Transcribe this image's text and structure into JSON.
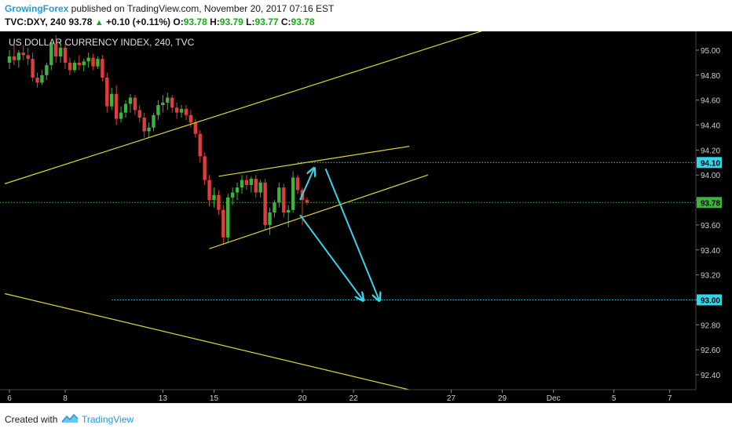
{
  "header": {
    "author": "GrowingForex",
    "published_text": " published on TradingView.com, November 20, 2017 07:16 EST",
    "symbol": "TVC:DXY, 240",
    "last": "93.78",
    "change": "+0.10 (+0.11%)",
    "o_label": "O:",
    "o_value": "93.78",
    "h_label": "H:",
    "h_value": "93.79",
    "l_label": "L:",
    "l_value": "93.77",
    "c_label": "C:",
    "c_value": "93.78",
    "up_arrow": "▲"
  },
  "footer": {
    "created_with": "Created with",
    "brand": "TradingView"
  },
  "colors": {
    "background": "#000000",
    "bull": "#3cb43c",
    "bear": "#e03c3c",
    "trendline": "#d9d92e",
    "arrow": "#33d6e8",
    "level_label": "#33d6e8",
    "price_label": "#3cb43c",
    "axis_text": "#cfcfcf"
  },
  "chart_data": {
    "type": "candlestick",
    "title": "US DOLLAR CURRENCY INDEX, 240, TVC",
    "ylim": [
      92.3,
      95.2
    ],
    "y_ticks": [
      "95.00",
      "94.80",
      "94.60",
      "94.40",
      "94.20",
      "94.00",
      "93.80",
      "93.60",
      "93.40",
      "93.20",
      "93.00",
      "92.80",
      "92.60",
      "92.40"
    ],
    "x_ticks": [
      {
        "label": "6",
        "bar": 0
      },
      {
        "label": "8",
        "bar": 12
      },
      {
        "label": "13",
        "bar": 33
      },
      {
        "label": "15",
        "bar": 44
      },
      {
        "label": "20",
        "bar": 63
      },
      {
        "label": "22",
        "bar": 74
      },
      {
        "label": "27",
        "bar": 95
      },
      {
        "label": "29",
        "bar": 106
      },
      {
        "label": "Dec",
        "bar": 117
      },
      {
        "label": "5",
        "bar": 130
      },
      {
        "label": "7",
        "bar": 142
      }
    ],
    "candles": [
      {
        "o": 94.9,
        "h": 95.0,
        "l": 94.85,
        "c": 94.95
      },
      {
        "o": 94.95,
        "h": 95.05,
        "l": 94.88,
        "c": 94.92
      },
      {
        "o": 94.92,
        "h": 95.0,
        "l": 94.86,
        "c": 94.98
      },
      {
        "o": 94.98,
        "h": 95.04,
        "l": 94.92,
        "c": 94.96
      },
      {
        "o": 94.96,
        "h": 95.02,
        "l": 94.88,
        "c": 94.93
      },
      {
        "o": 94.93,
        "h": 94.98,
        "l": 94.75,
        "c": 94.78
      },
      {
        "o": 94.78,
        "h": 94.82,
        "l": 94.7,
        "c": 94.74
      },
      {
        "o": 94.74,
        "h": 94.84,
        "l": 94.72,
        "c": 94.8
      },
      {
        "o": 94.8,
        "h": 94.9,
        "l": 94.76,
        "c": 94.88
      },
      {
        "o": 94.88,
        "h": 95.08,
        "l": 94.84,
        "c": 95.05
      },
      {
        "o": 95.05,
        "h": 95.12,
        "l": 94.9,
        "c": 94.95
      },
      {
        "o": 94.95,
        "h": 95.06,
        "l": 94.9,
        "c": 95.02
      },
      {
        "o": 95.02,
        "h": 95.05,
        "l": 94.85,
        "c": 94.9
      },
      {
        "o": 94.9,
        "h": 94.94,
        "l": 94.8,
        "c": 94.84
      },
      {
        "o": 94.84,
        "h": 94.92,
        "l": 94.82,
        "c": 94.9
      },
      {
        "o": 94.9,
        "h": 94.96,
        "l": 94.84,
        "c": 94.88
      },
      {
        "o": 94.88,
        "h": 94.93,
        "l": 94.83,
        "c": 94.91
      },
      {
        "o": 94.91,
        "h": 94.98,
        "l": 94.86,
        "c": 94.94
      },
      {
        "o": 94.94,
        "h": 94.97,
        "l": 94.84,
        "c": 94.87
      },
      {
        "o": 94.87,
        "h": 94.95,
        "l": 94.85,
        "c": 94.93
      },
      {
        "o": 94.93,
        "h": 94.96,
        "l": 94.75,
        "c": 94.78
      },
      {
        "o": 94.78,
        "h": 94.82,
        "l": 94.5,
        "c": 94.55
      },
      {
        "o": 94.55,
        "h": 94.7,
        "l": 94.52,
        "c": 94.65
      },
      {
        "o": 94.65,
        "h": 94.72,
        "l": 94.4,
        "c": 94.45
      },
      {
        "o": 94.45,
        "h": 94.55,
        "l": 94.42,
        "c": 94.5
      },
      {
        "o": 94.5,
        "h": 94.6,
        "l": 94.46,
        "c": 94.57
      },
      {
        "o": 94.57,
        "h": 94.65,
        "l": 94.5,
        "c": 94.62
      },
      {
        "o": 94.62,
        "h": 94.64,
        "l": 94.48,
        "c": 94.52
      },
      {
        "o": 94.52,
        "h": 94.56,
        "l": 94.42,
        "c": 94.46
      },
      {
        "o": 94.46,
        "h": 94.5,
        "l": 94.3,
        "c": 94.35
      },
      {
        "o": 94.35,
        "h": 94.42,
        "l": 94.3,
        "c": 94.38
      },
      {
        "o": 94.38,
        "h": 94.5,
        "l": 94.35,
        "c": 94.48
      },
      {
        "o": 94.48,
        "h": 94.6,
        "l": 94.44,
        "c": 94.56
      },
      {
        "o": 94.56,
        "h": 94.64,
        "l": 94.5,
        "c": 94.58
      },
      {
        "o": 94.58,
        "h": 94.66,
        "l": 94.52,
        "c": 94.62
      },
      {
        "o": 94.62,
        "h": 94.64,
        "l": 94.5,
        "c": 94.54
      },
      {
        "o": 94.54,
        "h": 94.58,
        "l": 94.45,
        "c": 94.5
      },
      {
        "o": 94.5,
        "h": 94.56,
        "l": 94.46,
        "c": 94.53
      },
      {
        "o": 94.53,
        "h": 94.56,
        "l": 94.44,
        "c": 94.48
      },
      {
        "o": 94.48,
        "h": 94.52,
        "l": 94.38,
        "c": 94.42
      },
      {
        "o": 94.42,
        "h": 94.45,
        "l": 94.3,
        "c": 94.33
      },
      {
        "o": 94.33,
        "h": 94.36,
        "l": 94.1,
        "c": 94.15
      },
      {
        "o": 94.15,
        "h": 94.18,
        "l": 93.92,
        "c": 93.96
      },
      {
        "o": 93.96,
        "h": 94.0,
        "l": 93.75,
        "c": 93.8
      },
      {
        "o": 93.8,
        "h": 93.9,
        "l": 93.74,
        "c": 93.84
      },
      {
        "o": 93.84,
        "h": 93.88,
        "l": 93.68,
        "c": 93.72
      },
      {
        "o": 93.72,
        "h": 93.76,
        "l": 93.44,
        "c": 93.5
      },
      {
        "o": 93.5,
        "h": 93.85,
        "l": 93.46,
        "c": 93.82
      },
      {
        "o": 93.82,
        "h": 93.9,
        "l": 93.76,
        "c": 93.86
      },
      {
        "o": 93.86,
        "h": 93.94,
        "l": 93.8,
        "c": 93.9
      },
      {
        "o": 93.9,
        "h": 94.0,
        "l": 93.85,
        "c": 93.96
      },
      {
        "o": 93.96,
        "h": 94.0,
        "l": 93.88,
        "c": 93.92
      },
      {
        "o": 93.92,
        "h": 93.99,
        "l": 93.86,
        "c": 93.97
      },
      {
        "o": 93.97,
        "h": 94.0,
        "l": 93.82,
        "c": 93.86
      },
      {
        "o": 93.86,
        "h": 93.96,
        "l": 93.82,
        "c": 93.94
      },
      {
        "o": 93.94,
        "h": 93.97,
        "l": 93.56,
        "c": 93.6
      },
      {
        "o": 93.6,
        "h": 93.74,
        "l": 93.52,
        "c": 93.7
      },
      {
        "o": 93.7,
        "h": 93.8,
        "l": 93.66,
        "c": 93.78
      },
      {
        "o": 93.78,
        "h": 93.94,
        "l": 93.74,
        "c": 93.9
      },
      {
        "o": 93.9,
        "h": 93.93,
        "l": 93.66,
        "c": 93.7
      },
      {
        "o": 93.7,
        "h": 93.76,
        "l": 93.58,
        "c": 93.72
      },
      {
        "o": 93.72,
        "h": 94.03,
        "l": 93.7,
        "c": 93.98
      },
      {
        "o": 93.98,
        "h": 94.0,
        "l": 93.85,
        "c": 93.88
      },
      {
        "o": 93.88,
        "h": 93.9,
        "l": 93.6,
        "c": 93.8
      },
      {
        "o": 93.8,
        "h": 93.82,
        "l": 93.76,
        "c": 93.78
      }
    ],
    "lines": [
      {
        "name": "upper-channel",
        "x1": -1,
        "y1": 93.93,
        "x2": 103,
        "y2": 95.17
      },
      {
        "name": "lower-channel",
        "x1": -1,
        "y1": 93.05,
        "x2": 86,
        "y2": 92.28
      },
      {
        "name": "wedge-upper",
        "x1": 45,
        "y1": 93.99,
        "x2": 86,
        "y2": 94.23
      },
      {
        "name": "wedge-lower",
        "x1": 43,
        "y1": 93.41,
        "x2": 90,
        "y2": 94.0
      }
    ],
    "levels": [
      {
        "value": 94.1,
        "label": "94.10",
        "from_bar": 62
      },
      {
        "value": 93.0,
        "label": "93.00",
        "from_bar": 22
      },
      {
        "value": 93.78,
        "label": "93.78",
        "from_bar": -1
      }
    ],
    "arrows": [
      {
        "x1": 62.5,
        "y1": 93.8,
        "x2": 65.5,
        "y2": 94.05
      },
      {
        "x1": 62.5,
        "y1": 93.68,
        "x2": 76,
        "y2": 93.0
      },
      {
        "x1": 68,
        "y1": 94.05,
        "x2": 79.5,
        "y2": 93.0
      }
    ]
  }
}
